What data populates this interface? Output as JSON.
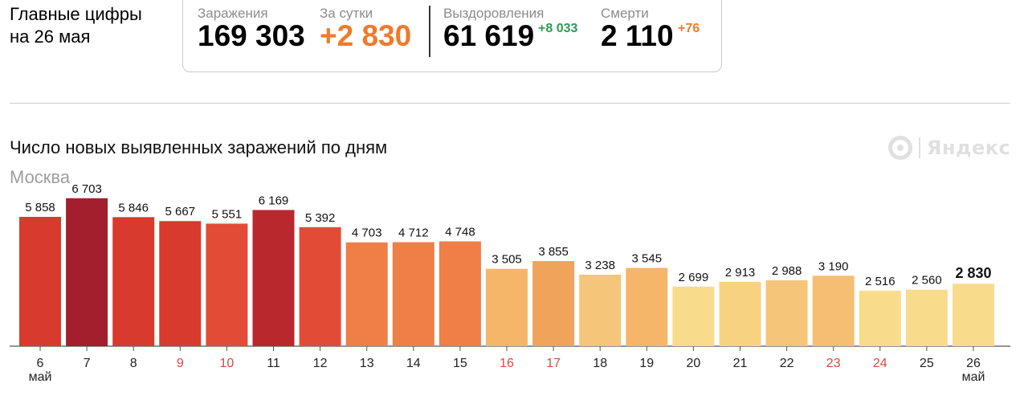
{
  "header": {
    "title_line1": "Главные цифры",
    "title_line2": "на 26 мая"
  },
  "stats": {
    "infected": {
      "label": "Заражения",
      "value": "169 303"
    },
    "per_day": {
      "label": "За сутки",
      "value": "+2 830",
      "color": "#f07a2c"
    },
    "recovered": {
      "label": "Выздоровления",
      "value": "61 619",
      "delta": "+8 033",
      "delta_color": "#2d9a55"
    },
    "deaths": {
      "label": "Смерти",
      "value": "2 110",
      "delta": "+76",
      "delta_color": "#f07a2c"
    }
  },
  "logo": {
    "icon": "yandex-logo-icon",
    "text": "Яндекс"
  },
  "chart_data": {
    "type": "bar",
    "title": "Число новых выявленных заражений по дням",
    "subtitle": "Москва",
    "categories": [
      "6",
      "7",
      "8",
      "9",
      "10",
      "11",
      "12",
      "13",
      "14",
      "15",
      "16",
      "17",
      "18",
      "19",
      "20",
      "21",
      "22",
      "23",
      "24",
      "25",
      "26"
    ],
    "values": [
      5858,
      6703,
      5846,
      5667,
      5551,
      6169,
      5392,
      4703,
      4712,
      4748,
      3505,
      3855,
      3238,
      3545,
      2699,
      2913,
      2988,
      3190,
      2516,
      2560,
      2830
    ],
    "value_labels": [
      "5 858",
      "6 703",
      "5 846",
      "5 667",
      "5 551",
      "6 169",
      "5 392",
      "4 703",
      "4 712",
      "4 748",
      "3 505",
      "3 855",
      "3 238",
      "3 545",
      "2 699",
      "2 913",
      "2 988",
      "3 190",
      "2 516",
      "2 560",
      "2 830"
    ],
    "bar_colors": [
      "#d83a2e",
      "#a31f2d",
      "#d83a2e",
      "#d83a2e",
      "#e24c36",
      "#b8282c",
      "#e24c36",
      "#ef7e47",
      "#ef7e47",
      "#ef7e47",
      "#f5b66a",
      "#f0a35a",
      "#f5c57a",
      "#f5b66a",
      "#f8dc8c",
      "#f7d281",
      "#f5c57a",
      "#f5be72",
      "#f8dc8c",
      "#f8dc8c",
      "#f8dc8c"
    ],
    "weekend_days": [
      "9",
      "10",
      "16",
      "17",
      "23",
      "24"
    ],
    "weekend_color": "#d84a3a",
    "month_label": "май",
    "month_label_at": [
      "6",
      "26"
    ],
    "highlight_last": true,
    "ylim": [
      0,
      7000
    ]
  }
}
